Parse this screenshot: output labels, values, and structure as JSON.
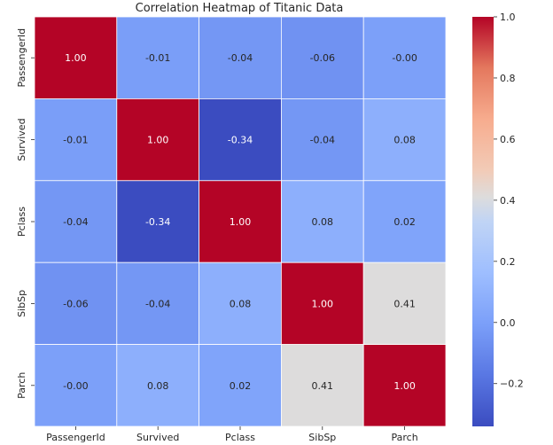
{
  "chart_data": {
    "type": "heatmap",
    "title": "Correlation Heatmap of Titanic Data",
    "x_labels": [
      "PassengerId",
      "Survived",
      "Pclass",
      "SibSp",
      "Parch"
    ],
    "y_labels": [
      "PassengerId",
      "Survived",
      "Pclass",
      "SibSp",
      "Parch"
    ],
    "matrix": [
      [
        1.0,
        -0.01,
        -0.04,
        -0.06,
        -0.0
      ],
      [
        -0.01,
        1.0,
        -0.34,
        -0.04,
        0.08
      ],
      [
        -0.04,
        -0.34,
        1.0,
        0.08,
        0.02
      ],
      [
        -0.06,
        -0.04,
        0.08,
        1.0,
        0.41
      ],
      [
        -0.0,
        0.08,
        0.02,
        0.41,
        1.0
      ]
    ],
    "cell_labels": [
      [
        "1.00",
        "-0.01",
        "-0.04",
        "-0.06",
        "-0.00"
      ],
      [
        "-0.01",
        "1.00",
        "-0.34",
        "-0.04",
        "0.08"
      ],
      [
        "-0.04",
        "-0.34",
        "1.00",
        "0.08",
        "0.02"
      ],
      [
        "-0.06",
        "-0.04",
        "0.08",
        "1.00",
        "0.41"
      ],
      [
        "-0.00",
        "0.08",
        "0.02",
        "0.41",
        "1.00"
      ]
    ],
    "colormap": "coolwarm",
    "vmin": -0.34,
    "vmax": 1.0,
    "colorbar": {
      "ticks": [
        -0.2,
        0.0,
        0.2,
        0.4,
        0.6,
        0.8,
        1.0
      ],
      "tick_labels": [
        "−0.2",
        "0.0",
        "0.2",
        "0.4",
        "0.6",
        "0.8",
        "1.0"
      ]
    },
    "xlabel": "",
    "ylabel": ""
  }
}
